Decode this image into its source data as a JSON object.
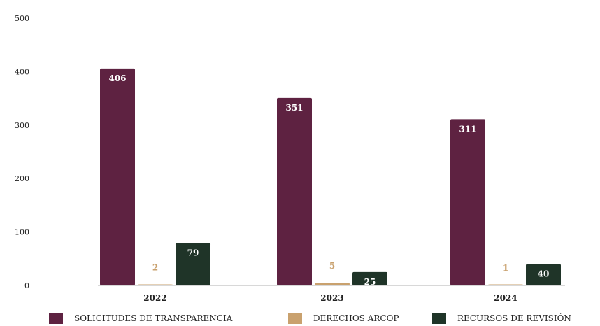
{
  "chart_data": {
    "type": "bar",
    "title": "",
    "xlabel": "",
    "ylabel": "",
    "categories": [
      "2022",
      "2023",
      "2024"
    ],
    "ylim": [
      0,
      500
    ],
    "yticks": [
      0,
      100,
      200,
      300,
      400,
      500
    ],
    "grid": false,
    "legend_position": "bottom",
    "series": [
      {
        "name": "SOLICITUDES DE TRANSPARENCIA",
        "values": [
          406,
          351,
          311
        ],
        "color": "#5e2241",
        "label_color": "#ffffff",
        "label_position": "inside-top"
      },
      {
        "name": "DERECHOS ARCOP",
        "values": [
          2,
          5,
          1
        ],
        "color": "#c9a16e",
        "label_color": "#c9a16e",
        "label_position": "above"
      },
      {
        "name": "RECURSOS DE REVISIÓN",
        "values": [
          79,
          25,
          40
        ],
        "color": "#1f3428",
        "label_color": "#ffffff",
        "label_position": "inside-top"
      }
    ]
  }
}
